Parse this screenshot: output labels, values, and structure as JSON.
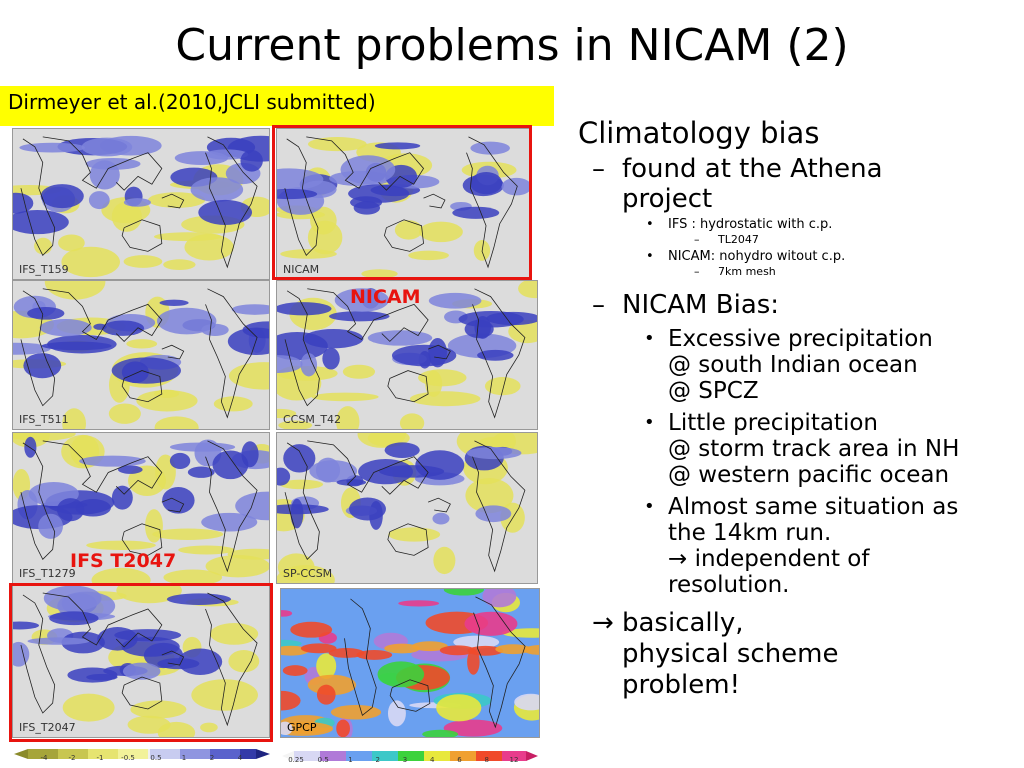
{
  "title": "Current problems in NICAM (2)",
  "citation": "Dirmeyer et al.(2010,JCLI submitted)",
  "maps": [
    {
      "label": "IFS_T159"
    },
    {
      "label": "NICAM"
    },
    {
      "label": "IFS_T511"
    },
    {
      "label": "CCSM_T42"
    },
    {
      "label": "IFS_T1279"
    },
    {
      "label": "SP-CCSM"
    },
    {
      "label": "IFS_T2047"
    },
    {
      "label": "GPCP"
    }
  ],
  "highlight_labels": {
    "nicam": "NICAM",
    "ifs": "IFS T2047"
  },
  "colorbar_bias": {
    "ticks": [
      "-4",
      "-2",
      "-1",
      "-0.5",
      "0.5",
      "1",
      "2",
      "4"
    ]
  },
  "colorbar_precip": {
    "ticks": [
      "0.25",
      "0.5",
      "1",
      "2",
      "3",
      "4",
      "6",
      "8",
      "12"
    ]
  },
  "bullets": {
    "heading": "Climatology bias",
    "dash": "–",
    "dot": "•",
    "found": {
      "line1": "found at the Athena",
      "line2": "project",
      "ifs": "IFS : hydrostatic with c.p.",
      "ifs_sub": "TL2047",
      "nicam": "NICAM: nohydro witout c.p.",
      "nicam_sub": "7km mesh"
    },
    "bias": {
      "heading": "NICAM Bias:",
      "item1": [
        "Excessive precipitation",
        "@ south Indian ocean",
        "@ SPCZ"
      ],
      "item2": [
        "Little precipitation",
        "@ storm track area in NH",
        "@ western pacific ocean"
      ],
      "item3": [
        "Almost same situation as",
        "the 14km run.",
        "→ independent of",
        "resolution."
      ]
    },
    "conclusion": {
      "arrow": "→",
      "line1": "basically,",
      "line2": "physical scheme",
      "line3": "problem!"
    }
  },
  "colors": {
    "highlight": "#ffff00",
    "frame": "#e8140f",
    "bias_dry": "#d8d64a",
    "bias_wet": "#3a40c0",
    "land_outline": "#222222"
  }
}
